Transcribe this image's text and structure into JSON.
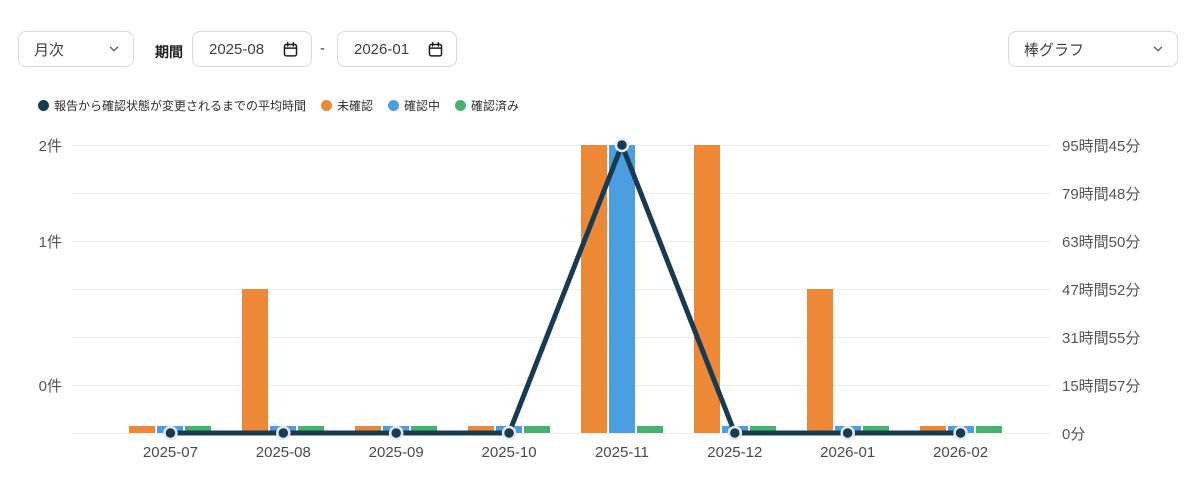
{
  "controls": {
    "granularity": {
      "value": "月次"
    },
    "period_label": "期間",
    "date_from": {
      "value": "2025-08"
    },
    "separator": "-",
    "date_to": {
      "value": "2026-01"
    },
    "chart_type": {
      "value": "棒グラフ"
    }
  },
  "legend": {
    "items": [
      {
        "label": "報告から確認状態が変更されるまでの平均時間",
        "color": "#183B52"
      },
      {
        "label": "未確認",
        "color": "#ED8936"
      },
      {
        "label": "確認中",
        "color": "#4B9FE1"
      },
      {
        "label": "確認済み",
        "color": "#46B26E"
      }
    ]
  },
  "chart_data": {
    "type": "bar",
    "title": "",
    "categories": [
      "2025-07",
      "2025-08",
      "2025-09",
      "2025-10",
      "2025-11",
      "2025-12",
      "2026-01",
      "2026-02"
    ],
    "series": [
      {
        "name": "未確認",
        "kind": "bar",
        "yaxis": "left",
        "color": "#ED8936",
        "values": [
          0,
          1,
          0,
          0,
          2,
          2,
          1,
          0
        ]
      },
      {
        "name": "確認中",
        "kind": "bar",
        "yaxis": "left",
        "color": "#4B9FE1",
        "values": [
          0,
          0,
          0,
          0,
          2,
          0,
          0,
          0
        ]
      },
      {
        "name": "確認済み",
        "kind": "bar",
        "yaxis": "left",
        "color": "#46B26E",
        "values": [
          0,
          0,
          0,
          0,
          0,
          0,
          0,
          0
        ]
      },
      {
        "name": "報告から確認状態が変更されるまでの平均時間",
        "kind": "line",
        "yaxis": "right",
        "color": "#183B52",
        "values_minutes": [
          0,
          0,
          0,
          0,
          5745,
          0,
          0,
          0
        ],
        "values_label": [
          "0分",
          "0分",
          "0分",
          "0分",
          "95時間45分",
          "0分",
          "0分",
          "0分"
        ]
      }
    ],
    "left_axis": {
      "unit": "件",
      "min": 0,
      "max": 2,
      "tick_rows": [
        {
          "row": 0,
          "label": "2件"
        },
        {
          "row": 2,
          "label": "1件"
        },
        {
          "row": 5,
          "label": "0件"
        }
      ]
    },
    "right_axis": {
      "min_minutes": 0,
      "max_minutes": 5745,
      "tick_labels_top_to_bottom": [
        "95時間45分",
        "79時間48分",
        "63時間50分",
        "47時間52分",
        "31時間55分",
        "15時間57分",
        "0分"
      ]
    },
    "grid": true,
    "legend_position": "top-left"
  }
}
